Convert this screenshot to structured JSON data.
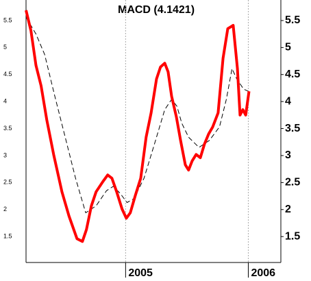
{
  "chart_data": {
    "type": "line",
    "title": "MACD (4.1421)",
    "xlim": [
      -42.2,
      65.8
    ],
    "xticks": [
      {
        "value": 0,
        "label": "2005"
      },
      {
        "value": 52,
        "label": "2006"
      }
    ],
    "ylim": [
      1.02,
      5.88
    ],
    "yticks": [
      1.5,
      2.0,
      2.5,
      3.0,
      3.5,
      4.0,
      4.5,
      5.0,
      5.5
    ],
    "series": [
      {
        "color": "#ff0000",
        "style": "solid",
        "x": [
          -42.2,
          -40.1,
          -38,
          -35.8,
          -33.4,
          -30.5,
          -27,
          -24,
          -20.6,
          -18.3,
          -16.6,
          -14.5,
          -12.5,
          -9.6,
          -7.6,
          -5.8,
          -3.8,
          -1.5,
          0.3,
          2,
          4.1,
          6.4,
          8.7,
          10.8,
          13.1,
          14.8,
          16.6,
          18,
          19.5,
          21.5,
          23.3,
          25.3,
          26.7,
          28.2,
          29.9,
          31.7,
          33.4,
          35.2,
          36.9,
          39.2,
          41.3,
          43.3,
          45.6,
          47.4,
          48.5,
          49.7,
          50.9,
          52.3
        ],
        "values": [
          5.69,
          5.31,
          4.67,
          4.29,
          3.66,
          3.02,
          2.33,
          1.88,
          1.46,
          1.41,
          1.63,
          2.07,
          2.33,
          2.52,
          2.64,
          2.58,
          2.33,
          2.01,
          1.84,
          1.94,
          2.26,
          2.58,
          3.34,
          3.79,
          4.42,
          4.64,
          4.71,
          4.55,
          4.1,
          3.72,
          3.28,
          2.83,
          2.73,
          2.9,
          3.02,
          2.96,
          3.21,
          3.4,
          3.53,
          3.79,
          4.8,
          5.35,
          5.41,
          4.61,
          3.75,
          3.85,
          3.75,
          4.19
        ]
      },
      {
        "color": "#000000",
        "style": "dashed",
        "x": [
          -42.2,
          -38,
          -34.3,
          -30,
          -25.6,
          -21.2,
          -16.9,
          -12.5,
          -8.1,
          -5.2,
          -2.3,
          0.6,
          3.5,
          7.8,
          12.2,
          16.6,
          19.5,
          21.8,
          23.8,
          26.7,
          31.1,
          35.5,
          39.8,
          42.7,
          45.1,
          47.1,
          50,
          52
        ],
        "values": [
          5.56,
          5.25,
          4.87,
          4.1,
          3.34,
          2.58,
          1.94,
          2.07,
          2.35,
          2.43,
          2.3,
          2.13,
          2.2,
          2.58,
          3.21,
          3.85,
          4.04,
          3.91,
          3.6,
          3.34,
          3.15,
          3.28,
          3.53,
          4.04,
          4.61,
          4.42,
          4.23,
          4.19
        ]
      }
    ]
  }
}
